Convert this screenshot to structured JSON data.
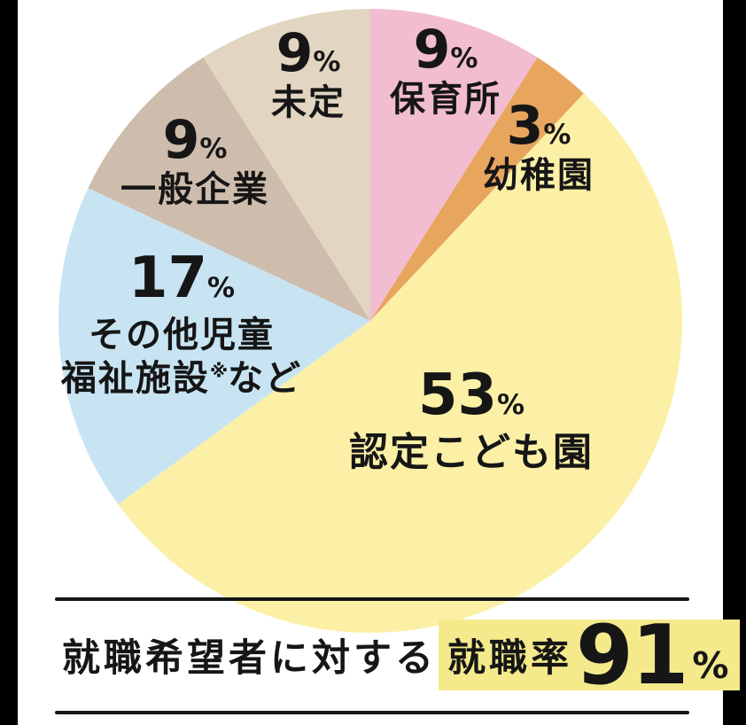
{
  "page": {
    "background_color": "#ffffff",
    "side_bar_color": "#000000",
    "rule_color": "#161616",
    "text_color": "#161616"
  },
  "chart_data": {
    "type": "pie",
    "title": "",
    "unit": "%",
    "direction": "clockwise",
    "start_angle_deg": 0,
    "legend_position": "labels-on-slices",
    "segments": [
      {
        "id": "hoikusho",
        "label": "保育所",
        "value": 9,
        "color": "#f2bcd1"
      },
      {
        "id": "yochien",
        "label": "幼稚園",
        "value": 3,
        "color": "#e7a55e"
      },
      {
        "id": "nintei",
        "label": "認定こども園",
        "value": 53,
        "color": "#fbf0a6"
      },
      {
        "id": "sonota",
        "label": "その他児童福祉施設※など",
        "value": 17,
        "color": "#c8e4f3"
      },
      {
        "id": "ippan",
        "label": "一般企業",
        "value": 9,
        "color": "#cebdac"
      },
      {
        "id": "mitei",
        "label": "未定",
        "value": 9,
        "color": "#e2d5c1"
      }
    ]
  },
  "percent_sign": "%",
  "overlay_labels": {
    "hoikusho": {
      "value": "9",
      "name": "保育所"
    },
    "yochien": {
      "value": "3",
      "name": "幼稚園"
    },
    "nintei": {
      "value": "53",
      "name": "認定こども園"
    },
    "sonota": {
      "value": "17",
      "line1": "その他児童",
      "line2_pre": "福祉施設",
      "line2_sup": "※",
      "line2_post": "など"
    },
    "ippan": {
      "value": "9",
      "name": "一般企業"
    },
    "mitei": {
      "value": "9",
      "name": "未定"
    }
  },
  "footer": {
    "prefix": "就職希望者に対する",
    "highlight_text": "就職率",
    "rate_value": "91",
    "rate_unit": "%",
    "highlight_color": "#f4ea8c"
  }
}
